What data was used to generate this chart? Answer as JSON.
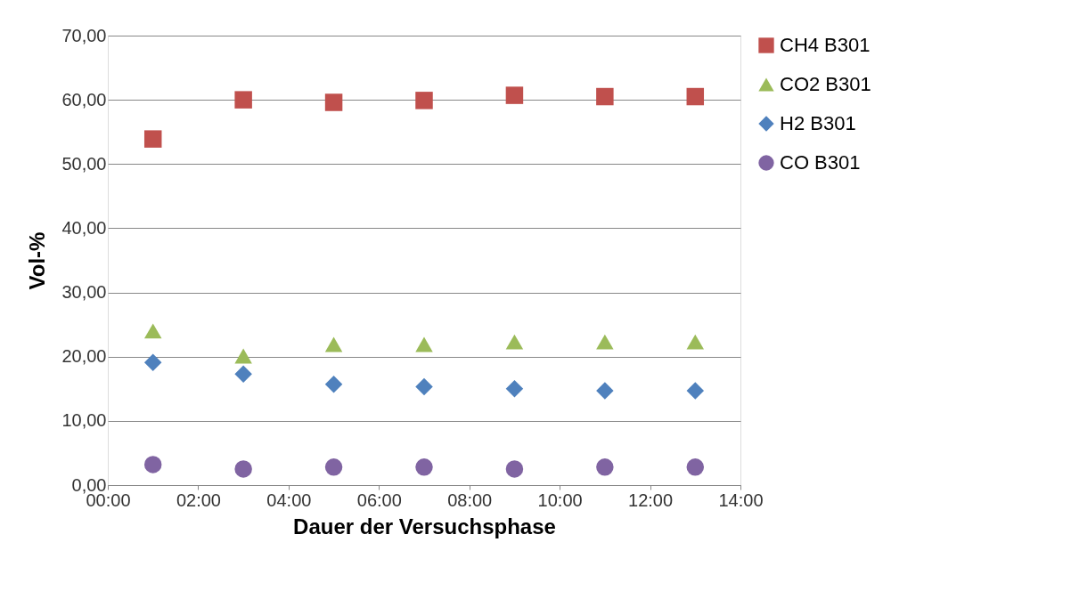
{
  "chart_data": {
    "type": "scatter",
    "xlabel": "Dauer der Versuchsphase",
    "ylabel": "Vol-%",
    "x": [
      1,
      3,
      5,
      7,
      9,
      11,
      13
    ],
    "series": [
      {
        "name": "CH4 B301",
        "color": "#c0504d",
        "marker": "square",
        "values": [
          53.9,
          60.0,
          59.6,
          59.9,
          60.7,
          60.5,
          60.5
        ]
      },
      {
        "name": "CO2 B301",
        "color": "#9bbb59",
        "marker": "triangle",
        "values": [
          24.0,
          20.1,
          21.9,
          21.9,
          22.3,
          22.3,
          22.3
        ]
      },
      {
        "name": "H2 B301",
        "color": "#4f81bd",
        "marker": "diamond",
        "values": [
          19.1,
          17.3,
          15.7,
          15.3,
          15.0,
          14.7,
          14.7
        ]
      },
      {
        "name": "CO B301",
        "color": "#8064a2",
        "marker": "circle",
        "values": [
          3.2,
          2.5,
          2.8,
          2.8,
          2.5,
          2.8,
          2.8
        ]
      }
    ],
    "xlim": [
      0,
      14
    ],
    "xticks": [
      {
        "value": 0,
        "label": "00:00"
      },
      {
        "value": 2,
        "label": "02:00"
      },
      {
        "value": 4,
        "label": "04:00"
      },
      {
        "value": 6,
        "label": "06:00"
      },
      {
        "value": 8,
        "label": "08:00"
      },
      {
        "value": 10,
        "label": "10:00"
      },
      {
        "value": 12,
        "label": "12:00"
      },
      {
        "value": 14,
        "label": "14:00"
      }
    ],
    "ylim": [
      0,
      70
    ],
    "yticks": [
      {
        "value": 0,
        "label": "0,00"
      },
      {
        "value": 10,
        "label": "10,00"
      },
      {
        "value": 20,
        "label": "20,00"
      },
      {
        "value": 30,
        "label": "30,00"
      },
      {
        "value": 40,
        "label": "40,00"
      },
      {
        "value": 50,
        "label": "50,00"
      },
      {
        "value": 60,
        "label": "60,00"
      },
      {
        "value": 70,
        "label": "70,00"
      }
    ],
    "grid": "y",
    "legend": "right"
  }
}
